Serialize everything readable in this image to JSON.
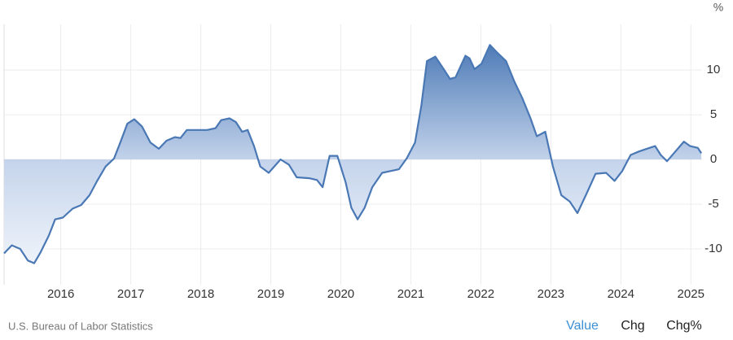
{
  "chart_data": {
    "type": "area",
    "ylabel": "%",
    "x": [
      2015.19,
      2015.3,
      2015.42,
      2015.53,
      2015.62,
      2015.71,
      2015.83,
      2015.92,
      2016.03,
      2016.17,
      2016.29,
      2016.41,
      2016.52,
      2016.64,
      2016.76,
      2016.85,
      2016.95,
      2017.05,
      2017.16,
      2017.28,
      2017.4,
      2017.51,
      2017.63,
      2017.71,
      2017.8,
      2017.92,
      2018.09,
      2018.21,
      2018.29,
      2018.41,
      2018.5,
      2018.59,
      2018.67,
      2018.76,
      2018.85,
      2018.97,
      2019.14,
      2019.26,
      2019.37,
      2019.55,
      2019.66,
      2019.74,
      2019.84,
      2019.95,
      2020.07,
      2020.15,
      2020.24,
      2020.34,
      2020.45,
      2020.59,
      2020.71,
      2020.83,
      2020.94,
      2021.06,
      2021.15,
      2021.23,
      2021.35,
      2021.47,
      2021.56,
      2021.64,
      2021.78,
      2021.84,
      2021.91,
      2022.01,
      2022.13,
      2022.24,
      2022.36,
      2022.48,
      2022.59,
      2022.71,
      2022.8,
      2022.92,
      2023.03,
      2023.15,
      2023.27,
      2023.38,
      2023.5,
      2023.64,
      2023.79,
      2023.91,
      2024.02,
      2024.14,
      2024.26,
      2024.37,
      2024.49,
      2024.57,
      2024.66,
      2024.78,
      2024.9,
      2024.99,
      2025.1,
      2025.15
    ],
    "values": [
      -10.5,
      -9.6,
      -10,
      -11.3,
      -11.6,
      -10.4,
      -8.5,
      -6.7,
      -6.5,
      -5.5,
      -5.1,
      -4,
      -2.4,
      -0.8,
      0.1,
      1.9,
      4,
      4.5,
      3.7,
      1.9,
      1.2,
      2.1,
      2.5,
      2.4,
      3.3,
      3.3,
      3.3,
      3.5,
      4.4,
      4.6,
      4.2,
      3.1,
      3.3,
      1.5,
      -0.8,
      -1.5,
      0,
      -0.6,
      -2,
      -2.1,
      -2.3,
      -3.1,
      0.4,
      0.4,
      -2.6,
      -5.4,
      -6.7,
      -5.4,
      -3.1,
      -1.5,
      -1.3,
      -1.1,
      0.1,
      1.9,
      6,
      11,
      11.5,
      10.1,
      9,
      9.2,
      11.6,
      11.3,
      10.1,
      10.7,
      12.8,
      11.9,
      11,
      8.7,
      6.9,
      4.6,
      2.6,
      3.1,
      -0.8,
      -4,
      -4.7,
      -6,
      -4,
      -1.6,
      -1.5,
      -2.4,
      -1.3,
      0.5,
      0.9,
      1.2,
      1.5,
      0.5,
      -0.2,
      0.9,
      2,
      1.5,
      1.3,
      0.7
    ],
    "color": "#4a78b5",
    "xlim": [
      2015.19,
      2025.16
    ],
    "xticks": [
      2016,
      2017,
      2018,
      2019,
      2020,
      2021,
      2022,
      2023,
      2024,
      2025
    ],
    "ylim": [
      -14,
      15.1
    ],
    "yticks": [
      -10,
      -5,
      0,
      5,
      10
    ],
    "grid": true
  },
  "footer": {
    "source": "U.S. Bureau of Labor Statistics",
    "tabs": [
      "Value",
      "Chg",
      "Chg%"
    ]
  }
}
